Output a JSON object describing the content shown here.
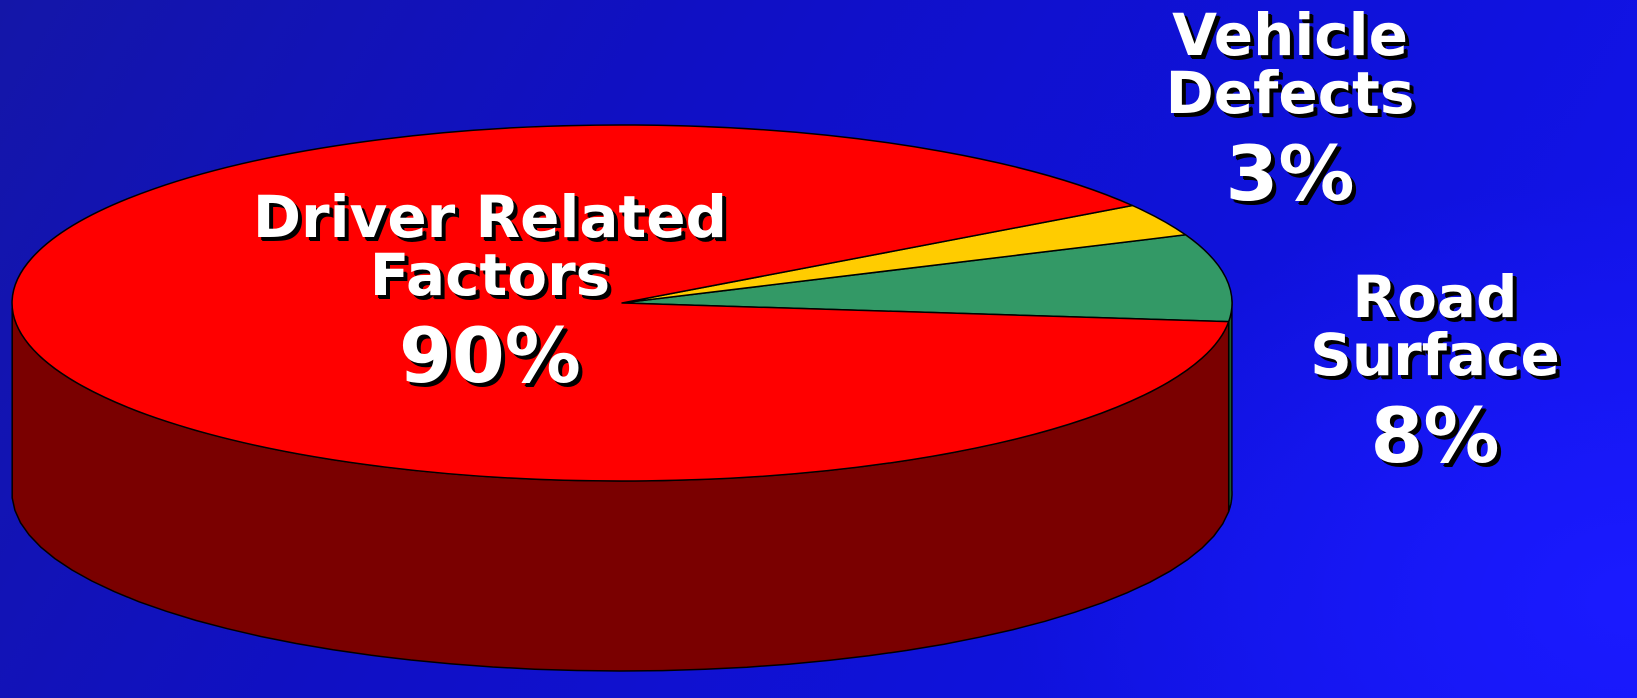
{
  "chart_data": {
    "type": "pie",
    "style": "3d",
    "slices": [
      {
        "label": "Driver Related Factors",
        "value": 90,
        "display": "90%",
        "color": "#ff0000",
        "side_color": "#7a0000"
      },
      {
        "label": "Road Surface",
        "value": 8,
        "display": "8%",
        "color": "#339966",
        "side_color": "#1c5a35"
      },
      {
        "label": "Vehicle Defects",
        "value": 3,
        "display": "3%",
        "color": "#ffcc00",
        "side_color": "#9a7a00"
      }
    ]
  },
  "labels": {
    "driver": {
      "name": "Driver Related\nFactors",
      "pct": "90%"
    },
    "road": {
      "name": "Road\nSurface",
      "pct": "8%"
    },
    "vehicle": {
      "name": "Vehicle\nDefects",
      "pct": "3%"
    }
  },
  "colors": {
    "background": "#1010d8",
    "label_text": "#ffffff",
    "label_shadow": "#000000"
  }
}
